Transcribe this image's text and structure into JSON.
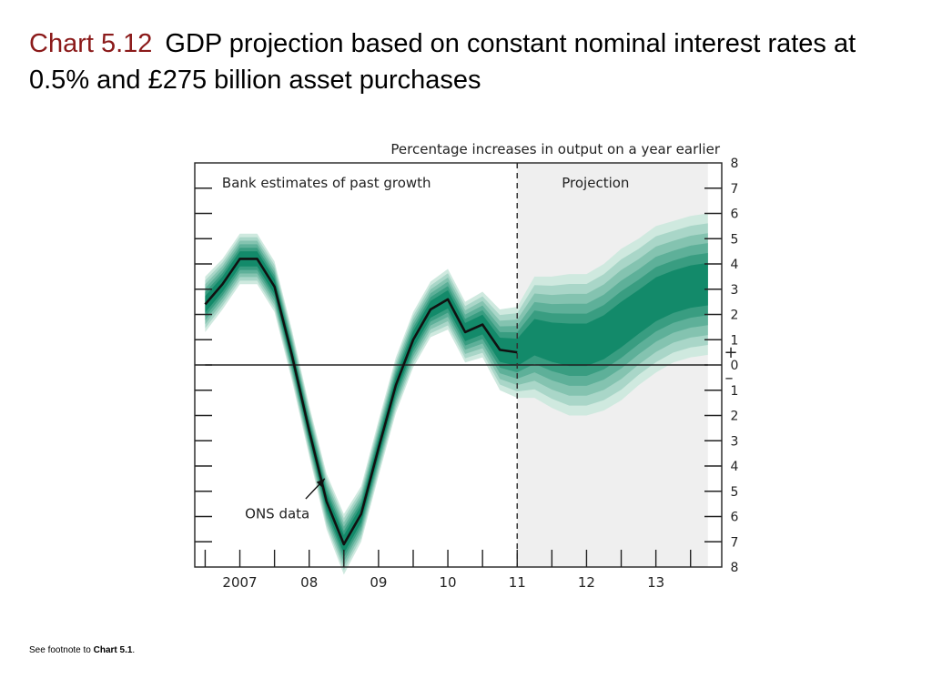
{
  "slide": {
    "title_label": "Chart 5.12",
    "title_text": "GDP projection based on constant nominal interest rates at 0.5% and £275 billion asset purchases",
    "footnote_prefix": "See footnote to",
    "footnote_ref": "Chart 5.1",
    "footnote_suffix": "."
  },
  "chart_data": {
    "type": "area",
    "subtitle": "Percentage increases in output on a year earlier",
    "region_labels": {
      "past": "Bank estimates of past growth",
      "projection": "Projection"
    },
    "annotation": "ONS data",
    "ylim": [
      -8,
      8
    ],
    "yticks": [
      8,
      7,
      6,
      5,
      4,
      3,
      2,
      1,
      0,
      1,
      2,
      3,
      4,
      5,
      6,
      7,
      8
    ],
    "yticks_signed": [
      8,
      7,
      6,
      5,
      4,
      3,
      2,
      1,
      0,
      -1,
      -2,
      -3,
      -4,
      -5,
      -6,
      -7,
      -8
    ],
    "sign_plus": "+",
    "sign_minus": "–",
    "x_labels": [
      {
        "label": "2007",
        "x": 2007.0
      },
      {
        "label": "08",
        "x": 2008.0
      },
      {
        "label": "09",
        "x": 2009.0
      },
      {
        "label": "10",
        "x": 2010.0
      },
      {
        "label": "11",
        "x": 2011.0
      },
      {
        "label": "12",
        "x": 2012.0
      },
      {
        "label": "13",
        "x": 2013.0
      }
    ],
    "xlim": [
      2006.35,
      2013.95
    ],
    "projection_start": 2011.0,
    "projection_end": 2013.75,
    "ons_data": {
      "x": [
        2006.5,
        2006.75,
        2007.0,
        2007.25,
        2007.5,
        2007.75,
        2008.0,
        2008.25,
        2008.5,
        2008.75,
        2009.0,
        2009.25,
        2009.5,
        2009.75,
        2010.0,
        2010.25,
        2010.5,
        2010.75,
        2011.0
      ],
      "y": [
        2.4,
        3.2,
        4.2,
        4.2,
        3.1,
        0.4,
        -2.6,
        -5.4,
        -7.1,
        -5.9,
        -3.3,
        -0.8,
        1.0,
        2.2,
        2.6,
        1.3,
        1.6,
        0.6,
        0.5
      ]
    },
    "fan": {
      "x": [
        2006.5,
        2006.75,
        2007.0,
        2007.25,
        2007.5,
        2007.75,
        2008.0,
        2008.25,
        2008.5,
        2008.75,
        2009.0,
        2009.25,
        2009.5,
        2009.75,
        2010.0,
        2010.25,
        2010.5,
        2010.75,
        2011.0,
        2011.25,
        2011.5,
        2011.75,
        2012.0,
        2012.25,
        2012.5,
        2012.75,
        2013.0,
        2013.25,
        2013.5,
        2013.75
      ],
      "central": [
        2.4,
        3.2,
        4.2,
        4.2,
        3.1,
        0.4,
        -2.6,
        -5.4,
        -7.1,
        -5.9,
        -3.3,
        -0.8,
        1.0,
        2.2,
        2.6,
        1.3,
        1.6,
        0.6,
        0.5,
        1.1,
        0.9,
        0.8,
        0.8,
        1.1,
        1.6,
        2.1,
        2.6,
        2.9,
        3.1,
        3.2
      ],
      "spread": [
        1.1,
        1.0,
        1.0,
        1.0,
        1.0,
        1.0,
        1.0,
        1.1,
        1.2,
        1.1,
        1.1,
        1.1,
        1.1,
        1.1,
        1.2,
        1.2,
        1.3,
        1.6,
        1.8,
        2.4,
        2.6,
        2.8,
        2.8,
        2.9,
        3.0,
        2.9,
        2.9,
        2.8,
        2.8,
        2.8
      ]
    },
    "colors": {
      "fan_dark": "#138a6a",
      "fan_light": "#cfe9df",
      "projection_bg": "#efefef",
      "line": "#111111",
      "title_label": "#8b1a1a"
    },
    "grid": false
  }
}
